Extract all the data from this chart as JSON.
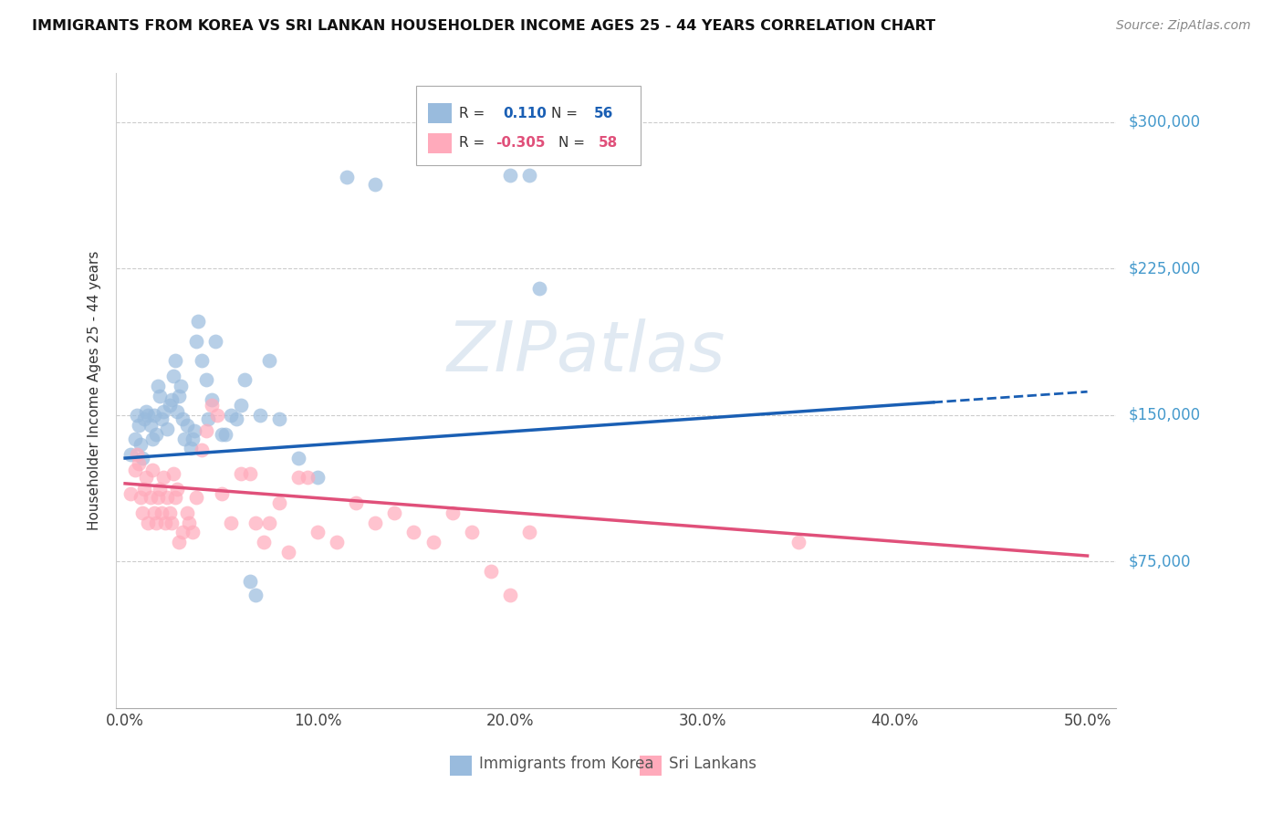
{
  "title": "IMMIGRANTS FROM KOREA VS SRI LANKAN HOUSEHOLDER INCOME AGES 25 - 44 YEARS CORRELATION CHART",
  "source": "Source: ZipAtlas.com",
  "ylabel": "Householder Income Ages 25 - 44 years",
  "xtick_labels": [
    "0.0%",
    "10.0%",
    "20.0%",
    "30.0%",
    "40.0%",
    "50.0%"
  ],
  "xtick_vals": [
    0.0,
    10.0,
    20.0,
    30.0,
    40.0,
    50.0
  ],
  "ytick_labels": [
    "$75,000",
    "$150,000",
    "$225,000",
    "$300,000"
  ],
  "ytick_vals": [
    75000,
    150000,
    225000,
    300000
  ],
  "xlim": [
    -0.5,
    51.5
  ],
  "ylim": [
    0,
    325000
  ],
  "korea_color": "#99bbdd",
  "sri_color": "#ffaabb",
  "korea_line_color": "#1a5fb4",
  "sri_line_color": "#e0507a",
  "watermark": "ZIPatlas",
  "legend_label_korea": "Immigrants from Korea",
  "legend_label_sri": "Sri Lankans",
  "korea_line_x0": 0.0,
  "korea_line_y0": 128000,
  "korea_line_x1": 50.0,
  "korea_line_y1": 162000,
  "sri_line_x0": 0.0,
  "sri_line_y0": 115000,
  "sri_line_x1": 50.0,
  "sri_line_y1": 78000,
  "korea_solid_end": 42.0,
  "korea_x": [
    0.3,
    0.5,
    0.6,
    0.7,
    0.8,
    0.9,
    1.0,
    1.1,
    1.2,
    1.3,
    1.4,
    1.5,
    1.6,
    1.7,
    1.8,
    1.9,
    2.0,
    2.2,
    2.3,
    2.4,
    2.5,
    2.6,
    2.7,
    2.8,
    2.9,
    3.0,
    3.1,
    3.2,
    3.4,
    3.5,
    3.6,
    3.7,
    3.8,
    4.0,
    4.2,
    4.3,
    4.5,
    4.7,
    5.0,
    5.2,
    5.5,
    5.8,
    6.0,
    6.2,
    6.5,
    6.8,
    7.0,
    7.5,
    8.0,
    9.0,
    10.0,
    11.5,
    13.0,
    20.0,
    21.0,
    21.5
  ],
  "korea_y": [
    130000,
    138000,
    150000,
    145000,
    135000,
    128000,
    148000,
    152000,
    150000,
    145000,
    138000,
    150000,
    140000,
    165000,
    160000,
    148000,
    152000,
    143000,
    155000,
    158000,
    170000,
    178000,
    152000,
    160000,
    165000,
    148000,
    138000,
    145000,
    133000,
    138000,
    142000,
    188000,
    198000,
    178000,
    168000,
    148000,
    158000,
    188000,
    140000,
    140000,
    150000,
    148000,
    155000,
    168000,
    65000,
    58000,
    150000,
    178000,
    148000,
    128000,
    118000,
    272000,
    268000,
    273000,
    273000,
    215000
  ],
  "sri_x": [
    0.3,
    0.5,
    0.6,
    0.7,
    0.8,
    0.9,
    1.0,
    1.1,
    1.2,
    1.3,
    1.4,
    1.5,
    1.6,
    1.7,
    1.8,
    1.9,
    2.0,
    2.1,
    2.2,
    2.3,
    2.4,
    2.5,
    2.6,
    2.7,
    2.8,
    3.0,
    3.2,
    3.3,
    3.5,
    3.7,
    4.0,
    4.2,
    4.5,
    4.8,
    5.0,
    5.5,
    6.0,
    6.5,
    6.8,
    7.2,
    7.5,
    8.0,
    8.5,
    9.0,
    9.5,
    10.0,
    11.0,
    12.0,
    13.0,
    14.0,
    15.0,
    16.0,
    17.0,
    18.0,
    19.0,
    20.0,
    21.0,
    35.0
  ],
  "sri_y": [
    110000,
    122000,
    130000,
    125000,
    108000,
    100000,
    112000,
    118000,
    95000,
    108000,
    122000,
    100000,
    95000,
    108000,
    112000,
    100000,
    118000,
    95000,
    108000,
    100000,
    95000,
    120000,
    108000,
    112000,
    85000,
    90000,
    100000,
    95000,
    90000,
    108000,
    132000,
    142000,
    155000,
    150000,
    110000,
    95000,
    120000,
    120000,
    95000,
    85000,
    95000,
    105000,
    80000,
    118000,
    118000,
    90000,
    85000,
    105000,
    95000,
    100000,
    90000,
    85000,
    100000,
    90000,
    70000,
    58000,
    90000,
    85000
  ]
}
